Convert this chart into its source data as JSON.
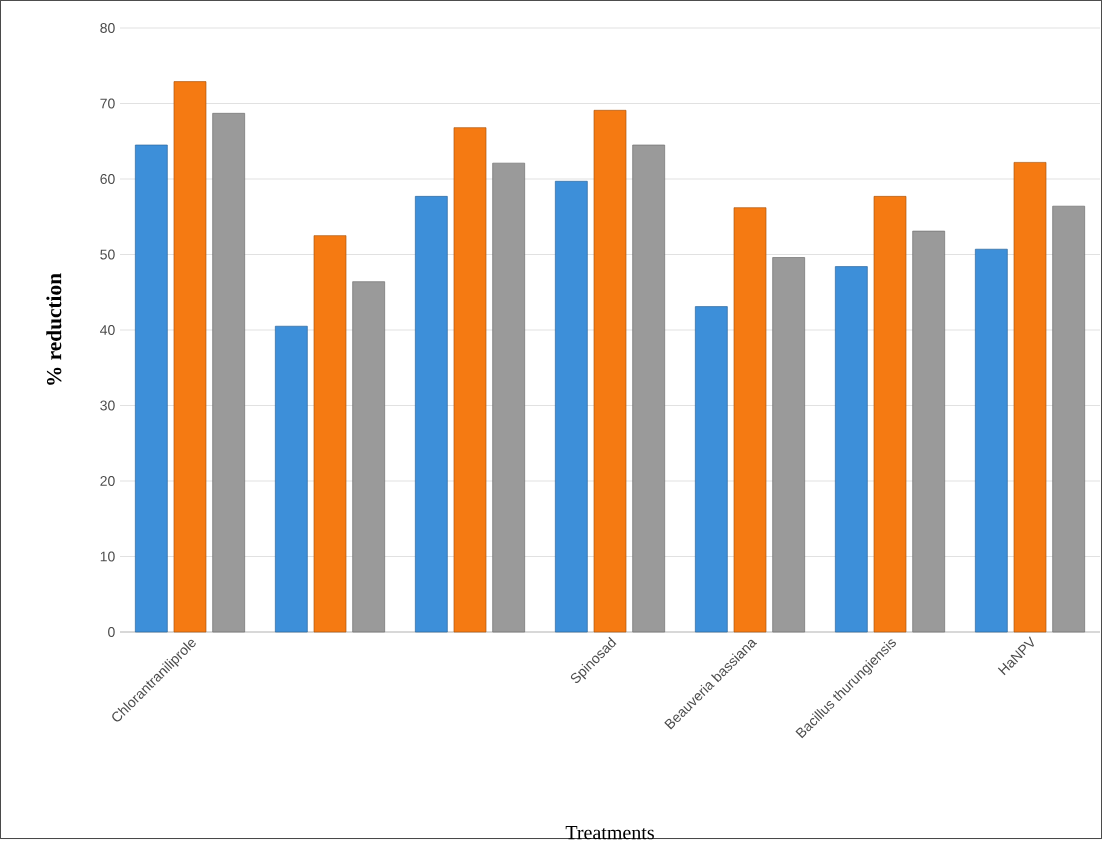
{
  "chart_data": {
    "type": "bar",
    "xlabel": "Treatments",
    "ylabel": "% reduction",
    "categories": [
      "Chlorantraniliprole",
      null,
      null,
      "Spinosad",
      "Beauveria bassiana",
      "Bacillus thurungiensis",
      "HaNPV"
    ],
    "series": [
      {
        "color": "#3d8fd9",
        "values": [
          64.5,
          40.5,
          57.7,
          59.7,
          43.1,
          48.4,
          50.7
        ]
      },
      {
        "color": "#f57a12",
        "values": [
          72.9,
          52.5,
          66.8,
          69.1,
          56.2,
          57.7,
          62.2
        ]
      },
      {
        "color": "#9a9a9a",
        "values": [
          68.7,
          46.4,
          62.1,
          64.5,
          49.6,
          53.1,
          56.4
        ]
      }
    ],
    "ylim": [
      0,
      80
    ],
    "yticks": [
      0,
      10,
      20,
      30,
      40,
      50,
      60,
      70,
      80
    ],
    "grid": "y",
    "legend": false
  }
}
